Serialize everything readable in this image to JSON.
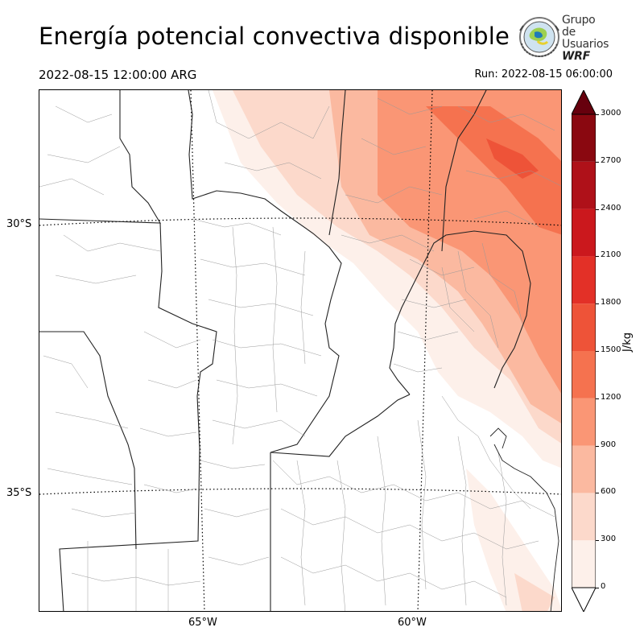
{
  "header": {
    "title": "Energía potencial convectiva disponible",
    "valid_time": "2022-08-15 12:00:00 ARG",
    "run_time": "Run: 2022-08-15 06:00:00"
  },
  "logo": {
    "line1": "Grupo de",
    "line2": "Usuarios",
    "line3": "WRF"
  },
  "map": {
    "lat_labels": [
      "30°S",
      "35°S"
    ],
    "lon_labels": [
      "65°W",
      "60°W"
    ]
  },
  "colorbar": {
    "unit": "J/kg",
    "ticks": [
      "0",
      "300",
      "600",
      "900",
      "1200",
      "1500",
      "1800",
      "2100",
      "2400",
      "2700",
      "3000"
    ],
    "colors": [
      "#fdf0ea",
      "#fcd9cb",
      "#fbb9a0",
      "#fa9675",
      "#f5724f",
      "#ee5338",
      "#e33027",
      "#cb181d",
      "#af1119",
      "#8a0810",
      "#67000d"
    ]
  }
}
